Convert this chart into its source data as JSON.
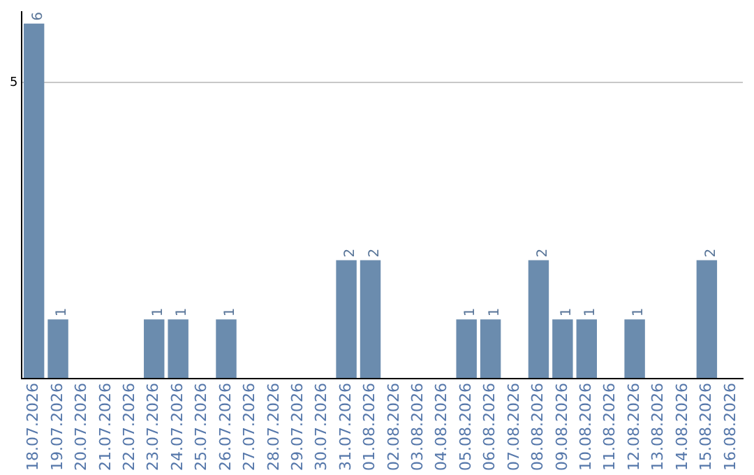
{
  "chart_data": {
    "type": "bar",
    "categories": [
      "18.07.2026",
      "19.07.2026",
      "20.07.2026",
      "21.07.2026",
      "22.07.2026",
      "23.07.2026",
      "24.07.2026",
      "25.07.2026",
      "26.07.2026",
      "27.07.2026",
      "28.07.2026",
      "29.07.2026",
      "30.07.2026",
      "31.07.2026",
      "01.08.2026",
      "02.08.2026",
      "03.08.2026",
      "04.08.2026",
      "05.08.2026",
      "06.08.2026",
      "07.08.2026",
      "08.08.2026",
      "09.08.2026",
      "10.08.2026",
      "11.08.2026",
      "12.08.2026",
      "13.08.2026",
      "14.08.2026",
      "15.08.2026",
      "16.08.2026"
    ],
    "values": [
      6,
      1,
      0,
      0,
      0,
      1,
      1,
      0,
      1,
      0,
      0,
      0,
      0,
      2,
      2,
      0,
      0,
      0,
      1,
      1,
      0,
      2,
      1,
      1,
      0,
      1,
      0,
      0,
      2,
      0
    ],
    "value_labels": [
      "6",
      "1",
      null,
      null,
      null,
      "1",
      "1",
      null,
      "1",
      null,
      null,
      null,
      null,
      "2",
      "2",
      null,
      null,
      null,
      "1",
      "1",
      null,
      "2",
      "1",
      "1",
      null,
      "1",
      null,
      null,
      "2",
      null
    ],
    "color": "#6b8cae",
    "ylim": [
      0,
      6.2
    ],
    "yticks": [
      {
        "value": 0,
        "label": null
      },
      5
    ],
    "grid": "y"
  }
}
